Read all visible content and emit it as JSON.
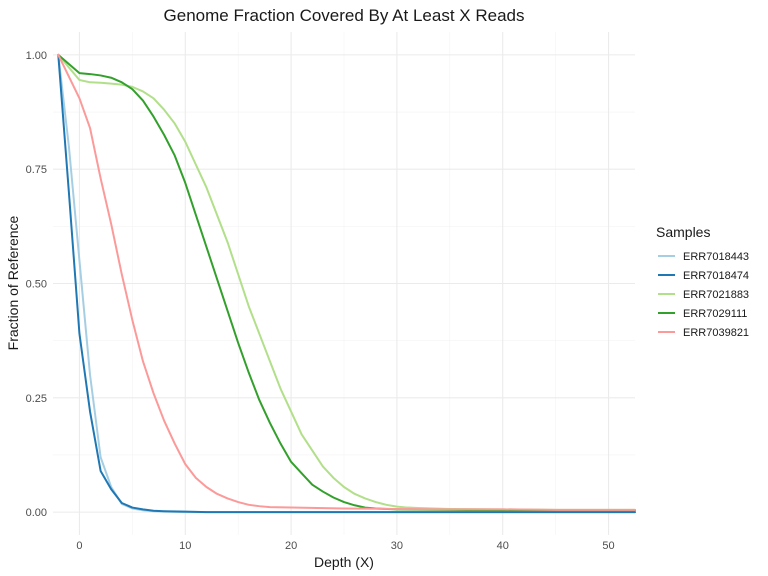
{
  "chart_data": {
    "type": "line",
    "title": "Genome Fraction Covered By At Least X Reads",
    "xlabel": "Depth (X)",
    "ylabel": "Fraction of Reference",
    "xlim": [
      -2.5,
      52.5
    ],
    "ylim": [
      -0.05,
      1.05
    ],
    "x_ticks": [
      0,
      10,
      20,
      30,
      40,
      50
    ],
    "y_ticks": [
      0.0,
      0.25,
      0.5,
      0.75,
      1.0
    ],
    "y_tick_labels": [
      "0.00",
      "0.25",
      "0.50",
      "0.75",
      "1.00"
    ],
    "grid": true,
    "legend": {
      "title": "Samples",
      "position": "right"
    },
    "series": [
      {
        "name": "ERR7018443",
        "color": "#a6cee3",
        "points": [
          [
            -2,
            1.0
          ],
          [
            -1,
            0.8
          ],
          [
            0,
            0.55
          ],
          [
            1,
            0.3
          ],
          [
            2,
            0.12
          ],
          [
            3,
            0.055
          ],
          [
            4,
            0.018
          ],
          [
            5,
            0.008
          ],
          [
            6,
            0.004
          ],
          [
            7,
            0.002
          ],
          [
            8,
            0.001
          ],
          [
            10,
            0.0
          ],
          [
            20,
            0.0
          ],
          [
            30,
            0.0
          ],
          [
            40,
            0.0
          ],
          [
            52.5,
            0.0
          ]
        ]
      },
      {
        "name": "ERR7018474",
        "color": "#1f78b4",
        "points": [
          [
            -2,
            1.0
          ],
          [
            -1,
            0.7
          ],
          [
            0,
            0.39
          ],
          [
            1,
            0.22
          ],
          [
            2,
            0.09
          ],
          [
            3,
            0.05
          ],
          [
            4,
            0.02
          ],
          [
            5,
            0.01
          ],
          [
            6,
            0.006
          ],
          [
            7,
            0.003
          ],
          [
            8,
            0.002
          ],
          [
            10,
            0.001
          ],
          [
            12,
            0.0
          ],
          [
            20,
            0.0
          ],
          [
            30,
            0.0
          ],
          [
            40,
            0.0
          ],
          [
            52.5,
            0.0
          ]
        ]
      },
      {
        "name": "ERR7021883",
        "color": "#b2df8a",
        "points": [
          [
            -2,
            1.0
          ],
          [
            0,
            0.945
          ],
          [
            1,
            0.94
          ],
          [
            2,
            0.939
          ],
          [
            3,
            0.937
          ],
          [
            4,
            0.935
          ],
          [
            5,
            0.93
          ],
          [
            6,
            0.92
          ],
          [
            7,
            0.905
          ],
          [
            8,
            0.88
          ],
          [
            9,
            0.85
          ],
          [
            10,
            0.81
          ],
          [
            11,
            0.76
          ],
          [
            12,
            0.71
          ],
          [
            13,
            0.65
          ],
          [
            14,
            0.59
          ],
          [
            15,
            0.52
          ],
          [
            16,
            0.45
          ],
          [
            17,
            0.39
          ],
          [
            18,
            0.33
          ],
          [
            19,
            0.27
          ],
          [
            20,
            0.22
          ],
          [
            21,
            0.17
          ],
          [
            22,
            0.135
          ],
          [
            23,
            0.1
          ],
          [
            24,
            0.075
          ],
          [
            25,
            0.055
          ],
          [
            26,
            0.04
          ],
          [
            27,
            0.03
          ],
          [
            28,
            0.022
          ],
          [
            29,
            0.016
          ],
          [
            30,
            0.012
          ],
          [
            31,
            0.01
          ],
          [
            32,
            0.009
          ],
          [
            35,
            0.007
          ],
          [
            40,
            0.006
          ],
          [
            45,
            0.005
          ],
          [
            50,
            0.005
          ],
          [
            52.5,
            0.005
          ]
        ]
      },
      {
        "name": "ERR7029111",
        "color": "#33a02c",
        "points": [
          [
            -2,
            1.0
          ],
          [
            0,
            0.96
          ],
          [
            1,
            0.958
          ],
          [
            2,
            0.955
          ],
          [
            3,
            0.95
          ],
          [
            4,
            0.94
          ],
          [
            5,
            0.925
          ],
          [
            6,
            0.9
          ],
          [
            7,
            0.865
          ],
          [
            8,
            0.825
          ],
          [
            9,
            0.78
          ],
          [
            10,
            0.72
          ],
          [
            11,
            0.65
          ],
          [
            12,
            0.58
          ],
          [
            13,
            0.51
          ],
          [
            14,
            0.44
          ],
          [
            15,
            0.37
          ],
          [
            16,
            0.305
          ],
          [
            17,
            0.245
          ],
          [
            18,
            0.195
          ],
          [
            19,
            0.15
          ],
          [
            20,
            0.11
          ],
          [
            21,
            0.085
          ],
          [
            22,
            0.06
          ],
          [
            23,
            0.045
          ],
          [
            24,
            0.032
          ],
          [
            25,
            0.022
          ],
          [
            26,
            0.015
          ],
          [
            27,
            0.01
          ],
          [
            28,
            0.008
          ],
          [
            30,
            0.006
          ],
          [
            35,
            0.005
          ],
          [
            40,
            0.004
          ],
          [
            50,
            0.004
          ],
          [
            52.5,
            0.004
          ]
        ]
      },
      {
        "name": "ERR7039821",
        "color": "#fb9a99",
        "points": [
          [
            -2,
            1.0
          ],
          [
            0,
            0.905
          ],
          [
            1,
            0.84
          ],
          [
            2,
            0.73
          ],
          [
            3,
            0.63
          ],
          [
            4,
            0.52
          ],
          [
            5,
            0.42
          ],
          [
            6,
            0.33
          ],
          [
            7,
            0.26
          ],
          [
            8,
            0.2
          ],
          [
            9,
            0.15
          ],
          [
            10,
            0.105
          ],
          [
            11,
            0.075
          ],
          [
            12,
            0.055
          ],
          [
            13,
            0.04
          ],
          [
            14,
            0.03
          ],
          [
            15,
            0.022
          ],
          [
            16,
            0.016
          ],
          [
            17,
            0.013
          ],
          [
            18,
            0.011
          ],
          [
            20,
            0.01
          ],
          [
            25,
            0.008
          ],
          [
            30,
            0.007
          ],
          [
            35,
            0.006
          ],
          [
            40,
            0.006
          ],
          [
            45,
            0.005
          ],
          [
            50,
            0.005
          ],
          [
            52.5,
            0.005
          ]
        ]
      }
    ]
  }
}
